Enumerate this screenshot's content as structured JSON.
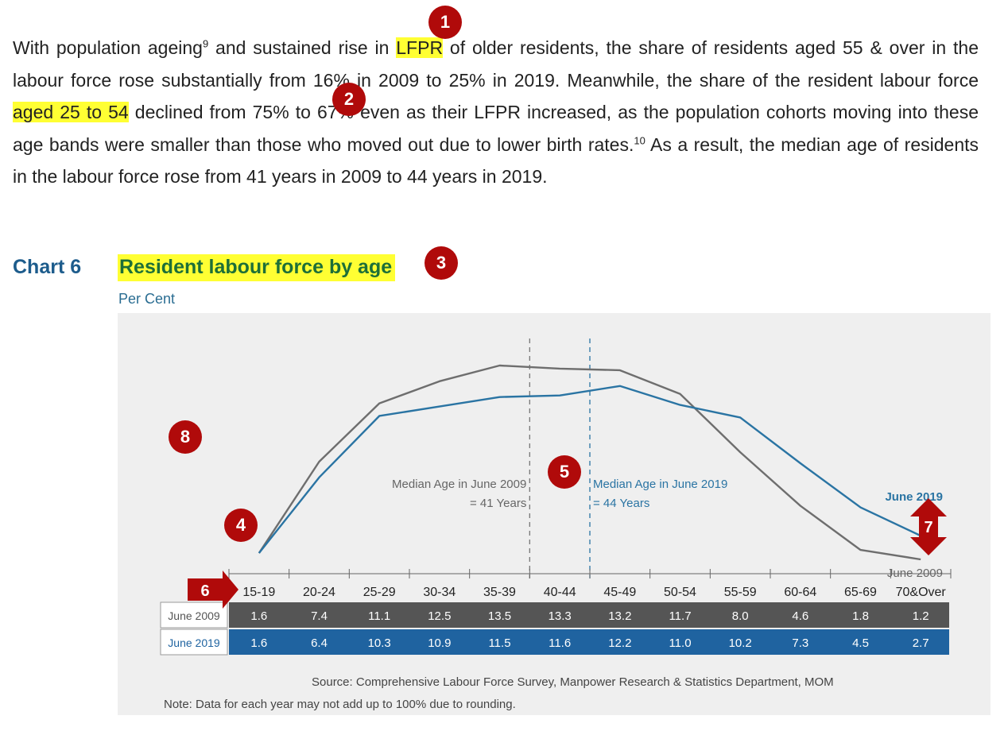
{
  "paragraph": {
    "p1": "With population ageing",
    "sup1": "9",
    "p2": " and sustained rise in ",
    "hl1": "LFPR",
    "p3": " of older residents, the share of residents aged 55 & over in the labour force rose substantially from 16% in 2009 to 25% in 2019.  Meanwhile, the share of the resident labour force ",
    "hl2": "aged 25 to 54",
    "p4": " declined from 75% to 67% even as their LFPR increased, as the population cohorts moving into these age bands were smaller than those who moved out due to lower birth rates.",
    "sup2": "10",
    "p5": "  As a result, the median age of residents in the labour force rose from 41 years in 2009 to 44 years in 2019."
  },
  "chart_heading": {
    "number": "Chart 6",
    "title": "Resident labour force by age"
  },
  "chart_data": {
    "type": "line",
    "title": "Resident labour force by age",
    "ylabel": "Per Cent",
    "categories": [
      "15-19",
      "20-24",
      "25-29",
      "30-34",
      "35-39",
      "40-44",
      "45-49",
      "50-54",
      "55-59",
      "60-64",
      "65-69",
      "70&Over"
    ],
    "series": [
      {
        "name": "June 2009",
        "values": [
          1.6,
          7.4,
          11.1,
          12.5,
          13.5,
          13.3,
          13.2,
          11.7,
          8.0,
          4.6,
          1.8,
          1.2
        ]
      },
      {
        "name": "June 2019",
        "values": [
          1.6,
          6.4,
          10.3,
          10.9,
          11.5,
          11.6,
          12.2,
          11.0,
          10.2,
          7.3,
          4.5,
          2.7
        ]
      }
    ],
    "table_row_labels": [
      "June 2009",
      "June 2019"
    ],
    "table_values": [
      [
        "1.6",
        "7.4",
        "11.1",
        "12.5",
        "13.5",
        "13.3",
        "13.2",
        "11.7",
        "8.0",
        "4.6",
        "1.8",
        "1.2"
      ],
      [
        "1.6",
        "6.4",
        "10.3",
        "10.9",
        "11.5",
        "11.6",
        "12.2",
        "11.0",
        "10.2",
        "7.3",
        "4.5",
        "2.7"
      ]
    ],
    "annotations": {
      "median_2009": [
        "Median Age in June 2009",
        "= 41 Years"
      ],
      "median_2019": [
        "Median Age in June 2019",
        "= 44 Years"
      ]
    },
    "series_labels": {
      "s2019": "June 2019",
      "s2009": "June 2009"
    },
    "colors": {
      "s2009": "#6e6e6e",
      "s2019": "#2a74a3",
      "row2009": "#555555",
      "row2019": "#1f63a0"
    },
    "grid": false
  },
  "source": "Source: Comprehensive Labour Force Survey, Manpower Research & Statistics Department, MOM",
  "note": "Note:  Data for each year may not add up to 100% due to rounding.",
  "badges": [
    "1",
    "2",
    "3",
    "4",
    "5",
    "6",
    "7",
    "8"
  ]
}
